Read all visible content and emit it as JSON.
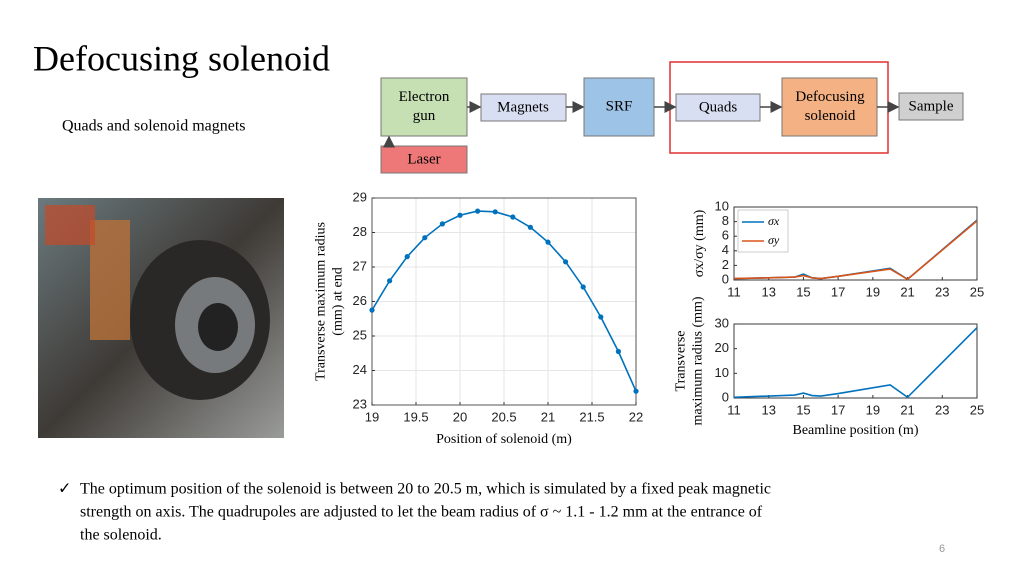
{
  "title": "Defocusing solenoid",
  "subtitle": "Quads and solenoid magnets",
  "diagram": {
    "boxes": [
      {
        "label": [
          "Electron",
          "gun"
        ]
      },
      {
        "label": [
          "Laser"
        ]
      },
      {
        "label": [
          "Magnets"
        ]
      },
      {
        "label": [
          "SRF"
        ]
      },
      {
        "label": [
          "Quads"
        ]
      },
      {
        "label": [
          "Defocusing",
          "solenoid"
        ]
      },
      {
        "label": [
          "Sample"
        ]
      }
    ]
  },
  "bullet": {
    "mark": "✓",
    "lines": [
      "The optimum position of the solenoid is between 20 to 20.5 m, which is simulated by a fixed peak magnetic",
      "strength on axis. The quadrupoles are adjusted to let the beam radius of σ ~ 1.1 - 1.2 mm at the entrance of",
      "the solenoid."
    ]
  },
  "page_number": "6",
  "chart_data": [
    {
      "type": "line",
      "markers": true,
      "grid": true,
      "color": "#0072bd",
      "xlabel": "Position of solenoid (m)",
      "ylabel": [
        "Transverse maximum radius",
        "(mm) at end"
      ],
      "x": [
        19,
        19.2,
        19.4,
        19.6,
        19.8,
        20,
        20.2,
        20.4,
        20.6,
        20.8,
        21,
        21.2,
        21.4,
        21.6,
        21.8,
        22
      ],
      "values": [
        25.75,
        26.6,
        27.3,
        27.85,
        28.25,
        28.5,
        28.62,
        28.6,
        28.45,
        28.15,
        27.72,
        27.15,
        26.42,
        25.55,
        24.55,
        23.4
      ],
      "xlim": [
        19,
        22
      ],
      "xticks": [
        19,
        19.5,
        20,
        20.5,
        21,
        21.5,
        22
      ],
      "ylim": [
        23,
        29
      ],
      "yticks": [
        23,
        24,
        25,
        26,
        27,
        28,
        29
      ]
    },
    {
      "type": "line",
      "grid": false,
      "legend": "upper left",
      "ylabel": [
        "σx/σy (mm)"
      ],
      "x": [
        11,
        13,
        14.5,
        15,
        15.5,
        16,
        17,
        20,
        21,
        25
      ],
      "series": [
        {
          "name": "σx",
          "color": "#0072bd",
          "values": [
            0.2,
            0.3,
            0.4,
            0.8,
            0.3,
            0.2,
            0.5,
            1.6,
            0.1,
            8.2
          ]
        },
        {
          "name": "σy",
          "color": "#d95319",
          "values": [
            0.2,
            0.3,
            0.4,
            0.6,
            0.3,
            0.2,
            0.5,
            1.5,
            0.1,
            8.1
          ]
        }
      ],
      "xlim": [
        11,
        25
      ],
      "xticks": [
        11,
        13,
        15,
        17,
        19,
        21,
        23,
        25
      ],
      "ylim": [
        0,
        10
      ],
      "yticks": [
        0,
        2,
        4,
        6,
        8,
        10
      ]
    },
    {
      "type": "line",
      "grid": false,
      "color": "#0072bd",
      "xlabel": "Beamline position (m)",
      "ylabel": [
        "Transverse",
        "maximum radius (mm)"
      ],
      "x": [
        11,
        13,
        14.5,
        15,
        15.5,
        16,
        17,
        20,
        21,
        25
      ],
      "values": [
        0.3,
        0.8,
        1.2,
        2,
        1,
        0.8,
        1.8,
        5.3,
        0.3,
        28.5
      ],
      "xlim": [
        11,
        25
      ],
      "xticks": [
        11,
        13,
        15,
        17,
        19,
        21,
        23,
        25
      ],
      "ylim": [
        0,
        30
      ],
      "yticks": [
        0,
        10,
        20,
        30
      ]
    }
  ]
}
